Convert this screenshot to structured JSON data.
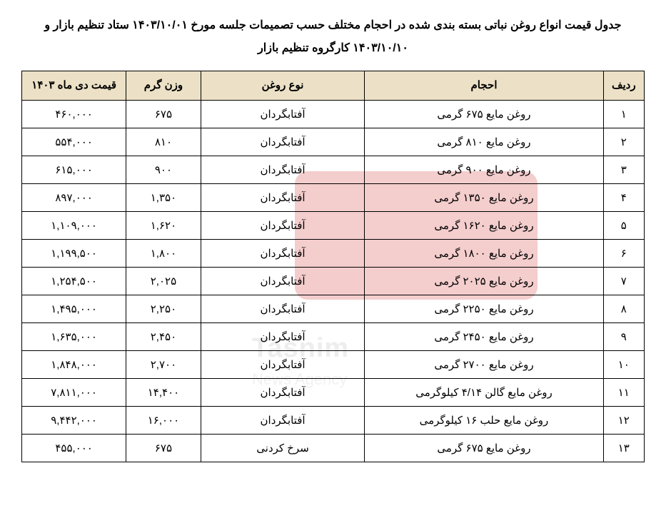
{
  "title_line1": "جدول قیمت انواع روغن نباتی بسته بندی شده در احجام مختلف حسب تصمیمات جلسه مورخ ۱۴۰۳/۱۰/۰۱ ستاد تنظیم بازار و",
  "title_line2": "۱۴۰۳/۱۰/۱۰ کارگروه تنظیم بازار",
  "watermark": {
    "line1": "خبرگزاری",
    "line2": "Tasnim",
    "line3": "News Agency"
  },
  "columns": {
    "idx": "ردیف",
    "size": "احجام",
    "type": "نوع روغن",
    "weight": "وزن گرم",
    "price": "قیمت دی ماه ۱۴۰۳"
  },
  "rows": [
    {
      "idx": "۱",
      "size": "روغن مایع ۶۷۵ گرمی",
      "type": "آفتابگردان",
      "weight": "۶۷۵",
      "price": "۴۶۰,۰۰۰"
    },
    {
      "idx": "۲",
      "size": "روغن مایع ۸۱۰ گرمی",
      "type": "آفتابگردان",
      "weight": "۸۱۰",
      "price": "۵۵۴,۰۰۰"
    },
    {
      "idx": "۳",
      "size": "روغن مایع ۹۰۰ گرمی",
      "type": "آفتابگردان",
      "weight": "۹۰۰",
      "price": "۶۱۵,۰۰۰"
    },
    {
      "idx": "۴",
      "size": "روغن مایع ۱۳۵۰ گرمی",
      "type": "آفتابگردان",
      "weight": "۱,۳۵۰",
      "price": "۸۹۷,۰۰۰"
    },
    {
      "idx": "۵",
      "size": "روغن مایع ۱۶۲۰ گرمی",
      "type": "آفتابگردان",
      "weight": "۱,۶۲۰",
      "price": "۱,۱۰۹,۰۰۰"
    },
    {
      "idx": "۶",
      "size": "روغن مایع ۱۸۰۰ گرمی",
      "type": "آفتابگردان",
      "weight": "۱,۸۰۰",
      "price": "۱,۱۹۹,۵۰۰"
    },
    {
      "idx": "۷",
      "size": "روغن مایع ۲۰۲۵ گرمی",
      "type": "آفتابگردان",
      "weight": "۲,۰۲۵",
      "price": "۱,۲۵۴,۵۰۰"
    },
    {
      "idx": "۸",
      "size": "روغن مایع ۲۲۵۰ گرمی",
      "type": "آفتابگردان",
      "weight": "۲,۲۵۰",
      "price": "۱,۴۹۵,۰۰۰"
    },
    {
      "idx": "۹",
      "size": "روغن مایع ۲۴۵۰ گرمی",
      "type": "آفتابگردان",
      "weight": "۲,۴۵۰",
      "price": "۱,۶۳۵,۰۰۰"
    },
    {
      "idx": "۱۰",
      "size": "روغن مایع ۲۷۰۰ گرمی",
      "type": "آفتابگردان",
      "weight": "۲,۷۰۰",
      "price": "۱,۸۴۸,۰۰۰"
    },
    {
      "idx": "۱۱",
      "size": "روغن مایع گالن ۴/۱۴ کیلوگرمی",
      "type": "آفتابگردان",
      "weight": "۱۴,۴۰۰",
      "price": "۷,۸۱۱,۰۰۰"
    },
    {
      "idx": "۱۲",
      "size": "روغن مایع حلب ۱۶ کیلوگرمی",
      "type": "آفتابگردان",
      "weight": "۱۶,۰۰۰",
      "price": "۹,۴۴۲,۰۰۰"
    },
    {
      "idx": "۱۳",
      "size": "روغن مایع ۶۷۵ گرمی",
      "type": "سرخ کردنی",
      "weight": "۶۷۵",
      "price": "۴۵۵,۰۰۰"
    }
  ]
}
